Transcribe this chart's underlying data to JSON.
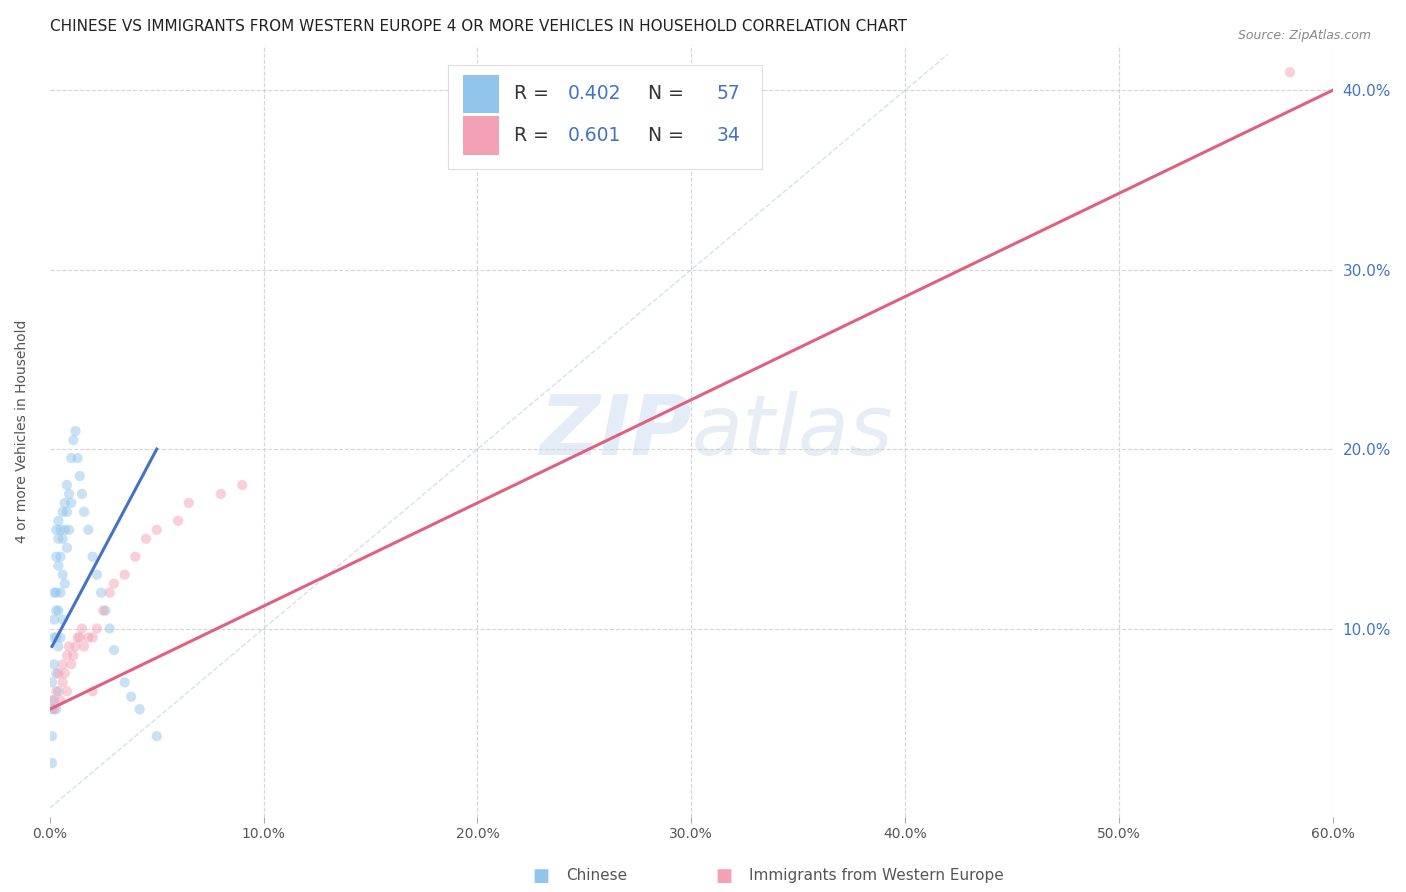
{
  "title": "CHINESE VS IMMIGRANTS FROM WESTERN EUROPE 4 OR MORE VEHICLES IN HOUSEHOLD CORRELATION CHART",
  "source": "Source: ZipAtlas.com",
  "ylabel": "4 or more Vehicles in Household",
  "xlim": [
    0.0,
    0.6
  ],
  "ylim": [
    -0.005,
    0.425
  ],
  "xticks": [
    0.0,
    0.1,
    0.2,
    0.3,
    0.4,
    0.5,
    0.6
  ],
  "yticks": [
    0.0,
    0.1,
    0.2,
    0.3,
    0.4
  ],
  "xticklabels": [
    "0.0%",
    "10.0%",
    "20.0%",
    "30.0%",
    "40.0%",
    "50.0%",
    "60.0%"
  ],
  "yticklabels_right": [
    "",
    "10.0%",
    "20.0%",
    "30.0%",
    "40.0%"
  ],
  "watermark": "ZIPatlas",
  "legend_R1": "0.402",
  "legend_N1": "57",
  "legend_R2": "0.601",
  "legend_N2": "34",
  "color_chinese": "#92C5EC",
  "color_western": "#F4A0B5",
  "color_line_chinese": "#4472C4",
  "color_line_western": "#E06080",
  "color_diagonal": "#B8CDE0",
  "background_color": "#FFFFFF",
  "grid_color": "#CCCCCC",
  "title_fontsize": 11,
  "scatter_size": 55,
  "scatter_alpha": 0.5,
  "chinese_x": [
    0.001,
    0.001,
    0.001,
    0.001,
    0.002,
    0.002,
    0.002,
    0.002,
    0.002,
    0.003,
    0.003,
    0.003,
    0.003,
    0.003,
    0.003,
    0.003,
    0.004,
    0.004,
    0.004,
    0.004,
    0.004,
    0.004,
    0.005,
    0.005,
    0.005,
    0.005,
    0.006,
    0.006,
    0.006,
    0.006,
    0.007,
    0.007,
    0.007,
    0.008,
    0.008,
    0.008,
    0.009,
    0.009,
    0.01,
    0.01,
    0.011,
    0.012,
    0.013,
    0.014,
    0.015,
    0.016,
    0.018,
    0.02,
    0.022,
    0.024,
    0.026,
    0.028,
    0.03,
    0.035,
    0.038,
    0.042,
    0.05
  ],
  "chinese_y": [
    0.07,
    0.055,
    0.04,
    0.025,
    0.12,
    0.105,
    0.095,
    0.08,
    0.06,
    0.155,
    0.14,
    0.12,
    0.11,
    0.095,
    0.075,
    0.055,
    0.16,
    0.15,
    0.135,
    0.11,
    0.09,
    0.065,
    0.155,
    0.14,
    0.12,
    0.095,
    0.165,
    0.15,
    0.13,
    0.105,
    0.17,
    0.155,
    0.125,
    0.18,
    0.165,
    0.145,
    0.175,
    0.155,
    0.195,
    0.17,
    0.205,
    0.21,
    0.195,
    0.185,
    0.175,
    0.165,
    0.155,
    0.14,
    0.13,
    0.12,
    0.11,
    0.1,
    0.088,
    0.07,
    0.062,
    0.055,
    0.04
  ],
  "western_x": [
    0.001,
    0.002,
    0.003,
    0.004,
    0.005,
    0.006,
    0.006,
    0.007,
    0.008,
    0.008,
    0.009,
    0.01,
    0.011,
    0.012,
    0.013,
    0.014,
    0.015,
    0.016,
    0.018,
    0.02,
    0.022,
    0.025,
    0.028,
    0.03,
    0.035,
    0.04,
    0.045,
    0.05,
    0.06,
    0.065,
    0.08,
    0.09,
    0.58,
    0.02
  ],
  "western_y": [
    0.06,
    0.055,
    0.065,
    0.075,
    0.06,
    0.07,
    0.08,
    0.075,
    0.065,
    0.085,
    0.09,
    0.08,
    0.085,
    0.09,
    0.095,
    0.095,
    0.1,
    0.09,
    0.095,
    0.095,
    0.1,
    0.11,
    0.12,
    0.125,
    0.13,
    0.14,
    0.15,
    0.155,
    0.16,
    0.17,
    0.175,
    0.18,
    0.41,
    0.065
  ],
  "line_western_x0": 0.0,
  "line_western_y0": 0.055,
  "line_western_x1": 0.6,
  "line_western_y1": 0.4,
  "line_chinese_x0": 0.001,
  "line_chinese_y0": 0.09,
  "line_chinese_x1": 0.05,
  "line_chinese_y1": 0.2
}
